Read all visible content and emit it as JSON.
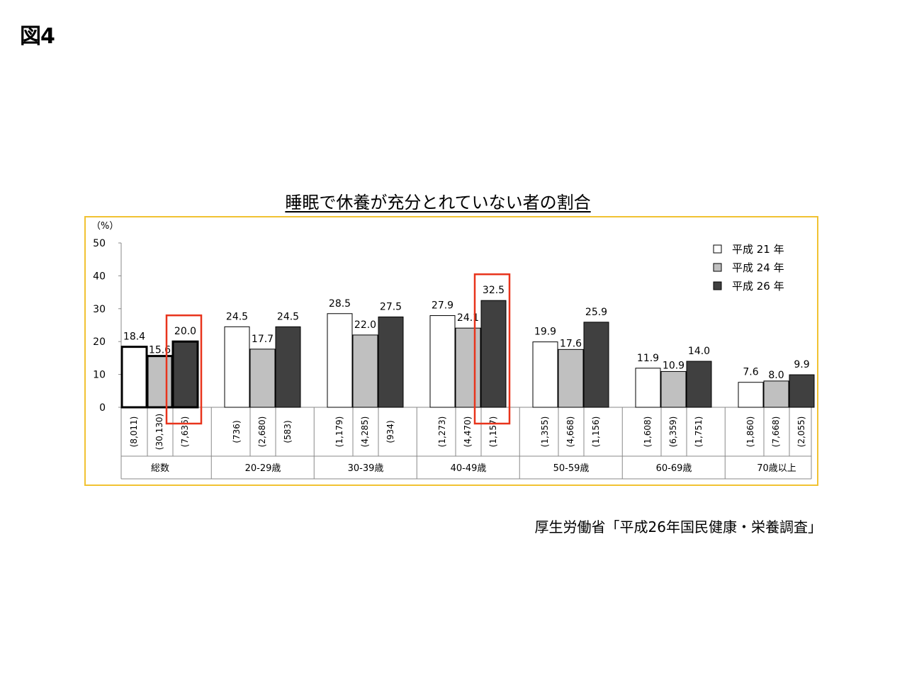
{
  "figure_label": "図4",
  "source": "厚生労働省「平成26年国民健康・栄養調査」",
  "colors": {
    "frame": "#f1c232",
    "highlight": "#e8341c",
    "series": [
      "#ffffff",
      "#c0c0c0",
      "#404040"
    ]
  },
  "chart_data": {
    "type": "bar",
    "title": "睡眠で休養が充分とれていない者の割合",
    "ylabel": "（%）",
    "ylim": [
      0,
      50
    ],
    "yticks": [
      0,
      10,
      20,
      30,
      40,
      50
    ],
    "grid": false,
    "legend_position": "top-right",
    "categories": [
      "総数",
      "20-29歳",
      "30-39歳",
      "40-49歳",
      "50-59歳",
      "60-69歳",
      "70歳以上"
    ],
    "series": [
      {
        "name": "平成 21 年",
        "values": [
          18.4,
          24.5,
          28.5,
          27.9,
          19.9,
          11.9,
          7.6
        ],
        "labels": [
          "18.4",
          "24.5",
          "28.5",
          "27.9",
          "19.9",
          "11.9",
          "7.6"
        ]
      },
      {
        "name": "平成 24 年",
        "values": [
          15.6,
          17.7,
          22.0,
          24.1,
          17.6,
          10.9,
          8.0
        ],
        "labels": [
          "15.6",
          "17.7",
          "22.0",
          "24.1",
          "17.6",
          "10.9",
          "8.0"
        ]
      },
      {
        "name": "平成 26 年",
        "values": [
          20.0,
          24.5,
          27.5,
          32.5,
          25.9,
          14.0,
          9.9
        ],
        "labels": [
          "20.0",
          "24.5",
          "27.5",
          "32.5",
          "25.9",
          "14.0",
          "9.9"
        ]
      }
    ],
    "sample_sizes": [
      [
        "(8,011)",
        "(30,130)",
        "(7,636)"
      ],
      [
        "(736)",
        "(2,680)",
        "(583)"
      ],
      [
        "(1,179)",
        "(4,285)",
        "(934)"
      ],
      [
        "(1,273)",
        "(4,470)",
        "(1,157)"
      ],
      [
        "(1,355)",
        "(4,668)",
        "(1,156)"
      ],
      [
        "(1,608)",
        "(6,359)",
        "(1,751)"
      ],
      [
        "(1,860)",
        "(7,668)",
        "(2,055)"
      ]
    ],
    "highlighted": [
      {
        "category": "総数",
        "series": "平成 26 年"
      },
      {
        "category": "40-49歳",
        "series": "平成 26 年"
      }
    ],
    "bold_outline_category": "総数"
  }
}
